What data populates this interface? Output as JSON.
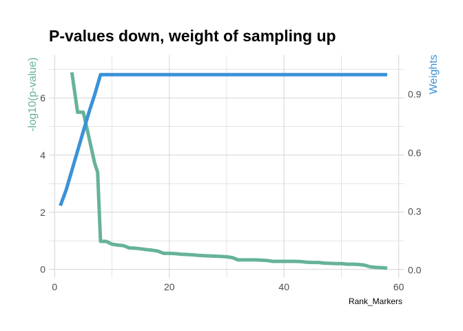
{
  "chart_data": {
    "type": "line",
    "title": "P-values down, weight of sampling up",
    "xlabel": "Rank_Markers",
    "ylabel_left": "-log10(p-value)",
    "ylabel_right": "Weights",
    "xlim": [
      -1,
      61
    ],
    "ylim_left": [
      -0.3,
      7.5
    ],
    "ylim_right": [
      -0.04,
      1.1
    ],
    "x_ticks": [
      0,
      20,
      40,
      60
    ],
    "x_tick_labels": [
      "0",
      "20",
      "40",
      "60"
    ],
    "y_left_ticks": [
      0,
      2,
      4,
      6
    ],
    "y_left_tick_labels": [
      "0",
      "2",
      "4",
      "6"
    ],
    "y_right_ticks": [
      0.0,
      0.3,
      0.6,
      0.9
    ],
    "y_right_tick_labels": [
      "0.0",
      "0.3",
      "0.6",
      "0.9"
    ],
    "grid": true,
    "colors": {
      "pvalue": "#66b29a",
      "weights": "#3a92d9",
      "grid": "#d3d3d3",
      "left_label": "#66b29a",
      "right_label": "#3a92d9"
    },
    "series": [
      {
        "axis": "left",
        "x": [
          3,
          4,
          5,
          6,
          7,
          7.5,
          8,
          9,
          10,
          11,
          12,
          13,
          14,
          15,
          16,
          17,
          18,
          19,
          20,
          21,
          22,
          23,
          24,
          25,
          26,
          27,
          28,
          29,
          30,
          31,
          32,
          33,
          34,
          35,
          36,
          37,
          38,
          39,
          40,
          41,
          42,
          43,
          44,
          45,
          46,
          47,
          48,
          49,
          50,
          51,
          52,
          53,
          54,
          55,
          56,
          57,
          58
        ],
        "values": [
          6.9,
          5.5,
          5.5,
          4.6,
          3.7,
          3.4,
          0.98,
          0.98,
          0.88,
          0.85,
          0.83,
          0.75,
          0.74,
          0.72,
          0.69,
          0.67,
          0.64,
          0.56,
          0.56,
          0.55,
          0.53,
          0.52,
          0.51,
          0.49,
          0.48,
          0.47,
          0.46,
          0.45,
          0.44,
          0.41,
          0.33,
          0.33,
          0.33,
          0.33,
          0.32,
          0.31,
          0.28,
          0.28,
          0.28,
          0.28,
          0.28,
          0.27,
          0.25,
          0.24,
          0.24,
          0.22,
          0.21,
          0.2,
          0.2,
          0.18,
          0.18,
          0.17,
          0.15,
          0.09,
          0.07,
          0.06,
          0.04
        ]
      },
      {
        "axis": "right",
        "x": [
          1,
          2,
          3,
          4,
          5,
          6,
          7,
          8,
          58
        ],
        "values": [
          0.33,
          0.41,
          0.51,
          0.61,
          0.71,
          0.81,
          0.9,
          1.0,
          1.0
        ]
      }
    ]
  }
}
